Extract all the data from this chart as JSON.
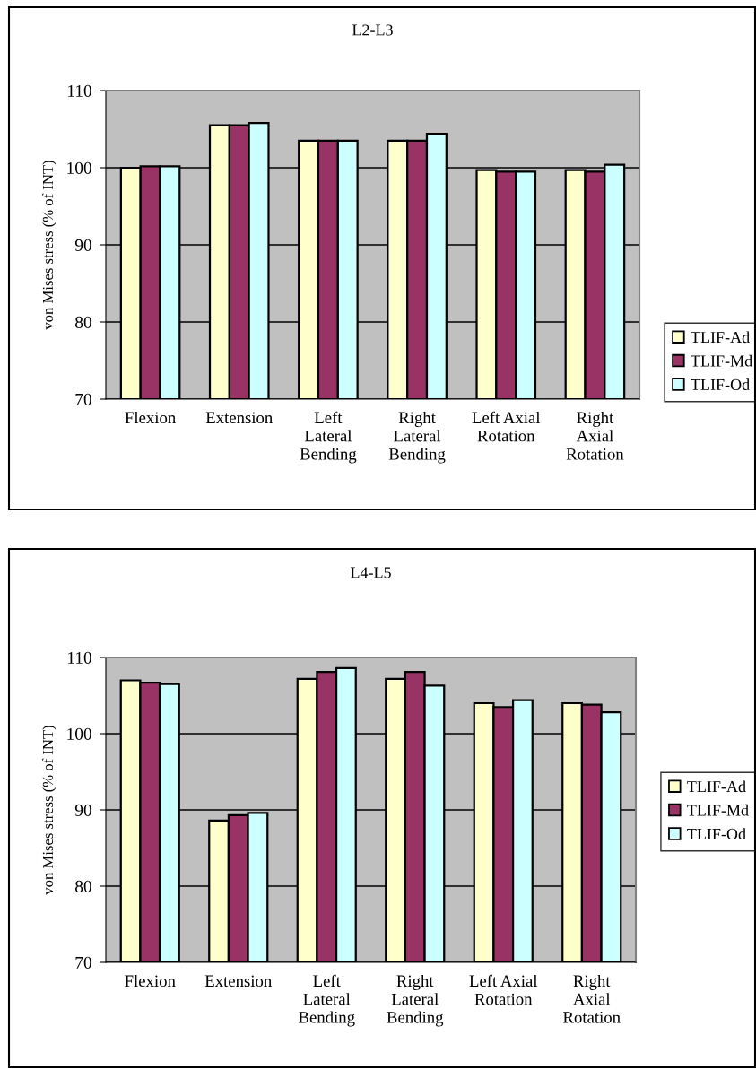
{
  "chart_data": [
    {
      "type": "bar",
      "title": "L2-L3",
      "ylabel": "von Mises stress (% of INT)",
      "categories": [
        "Flexion",
        "Extension",
        "Left\nLateral\nBending",
        "Right\nLateral\nBending",
        "Left Axial\nRotation",
        "Right\nAxial\nRotation"
      ],
      "series": [
        {
          "name": "TLIF-Ad",
          "color": "#ffffcc",
          "values": [
            100.0,
            105.5,
            103.5,
            103.5,
            99.7,
            99.7
          ]
        },
        {
          "name": "TLIF-Md",
          "color": "#993366",
          "values": [
            100.2,
            105.5,
            103.5,
            103.5,
            99.5,
            99.5
          ]
        },
        {
          "name": "TLIF-Od",
          "color": "#ccffff",
          "values": [
            100.2,
            105.8,
            103.5,
            104.4,
            99.5,
            100.4
          ]
        }
      ],
      "ylim": [
        70,
        110
      ],
      "yticks": [
        70,
        80,
        90,
        100,
        110
      ],
      "grid": "y",
      "legend": "right"
    },
    {
      "type": "bar",
      "title": "L4-L5",
      "ylabel": "von Mises stress (% of INT)",
      "categories": [
        "Flexion",
        "Extension",
        "Left\nLateral\nBending",
        "Right\nLateral\nBending",
        "Left Axial\nRotation",
        "Right\nAxial\nRotation"
      ],
      "series": [
        {
          "name": "TLIF-Ad",
          "color": "#ffffcc",
          "values": [
            107.0,
            88.6,
            107.2,
            107.2,
            104.0,
            104.0
          ]
        },
        {
          "name": "TLIF-Md",
          "color": "#993366",
          "values": [
            106.7,
            89.3,
            108.1,
            108.1,
            103.5,
            103.8
          ]
        },
        {
          "name": "TLIF-Od",
          "color": "#ccffff",
          "values": [
            106.5,
            89.6,
            108.6,
            106.3,
            104.4,
            102.8
          ]
        }
      ],
      "ylim": [
        70,
        110
      ],
      "yticks": [
        70,
        80,
        90,
        100,
        110
      ],
      "grid": "y",
      "legend": "right"
    }
  ]
}
